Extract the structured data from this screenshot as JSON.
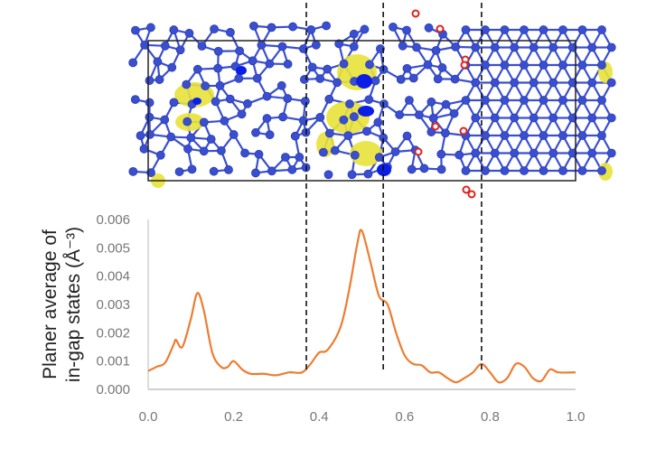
{
  "chart_data": {
    "type": "line",
    "title": "",
    "xlabel": "",
    "ylabel": "Planer average of in-gap states (Å⁻³)",
    "ylabel_lines": [
      "Planer average of",
      "in-gap states (Å⁻³)"
    ],
    "xlim": [
      0,
      1.0
    ],
    "ylim": [
      0,
      0.006
    ],
    "x_ticks": [
      "0.0",
      "0.2",
      "0.4",
      "0.6",
      "0.8",
      "1.0"
    ],
    "y_ticks": [
      "0.000",
      "0.001",
      "0.002",
      "0.003",
      "0.004",
      "0.005",
      "0.006"
    ],
    "grid": false,
    "series": [
      {
        "name": "planar average",
        "color": "#ed7d31",
        "x": [
          0.0,
          0.02,
          0.04,
          0.06,
          0.065,
          0.08,
          0.1,
          0.115,
          0.13,
          0.15,
          0.17,
          0.185,
          0.2,
          0.22,
          0.24,
          0.27,
          0.3,
          0.33,
          0.36,
          0.38,
          0.4,
          0.42,
          0.45,
          0.47,
          0.49,
          0.5,
          0.52,
          0.54,
          0.56,
          0.58,
          0.6,
          0.62,
          0.64,
          0.66,
          0.68,
          0.7,
          0.72,
          0.74,
          0.76,
          0.78,
          0.8,
          0.82,
          0.84,
          0.86,
          0.88,
          0.9,
          0.92,
          0.94,
          0.96,
          1.0
        ],
        "y": [
          0.00065,
          0.0008,
          0.00095,
          0.0016,
          0.00175,
          0.0015,
          0.0025,
          0.0034,
          0.0028,
          0.0013,
          0.0008,
          0.00078,
          0.001,
          0.0007,
          0.00055,
          0.00055,
          0.0005,
          0.0006,
          0.0006,
          0.0009,
          0.0013,
          0.0014,
          0.0022,
          0.0035,
          0.0052,
          0.0056,
          0.0045,
          0.0033,
          0.003,
          0.002,
          0.0012,
          0.0009,
          0.00085,
          0.0006,
          0.0006,
          0.0004,
          0.00025,
          0.0004,
          0.0006,
          0.0009,
          0.0006,
          0.00025,
          0.0004,
          0.0009,
          0.0008,
          0.0004,
          0.0003,
          0.0007,
          0.0006,
          0.0006
        ]
      }
    ],
    "vertical_dashed_lines_x": [
      0.37,
      0.55,
      0.78
    ]
  },
  "structure": {
    "atom_color": "#3a4fd0",
    "charge_color": "#e8e23a",
    "oxygen_color": "#e0201c"
  }
}
